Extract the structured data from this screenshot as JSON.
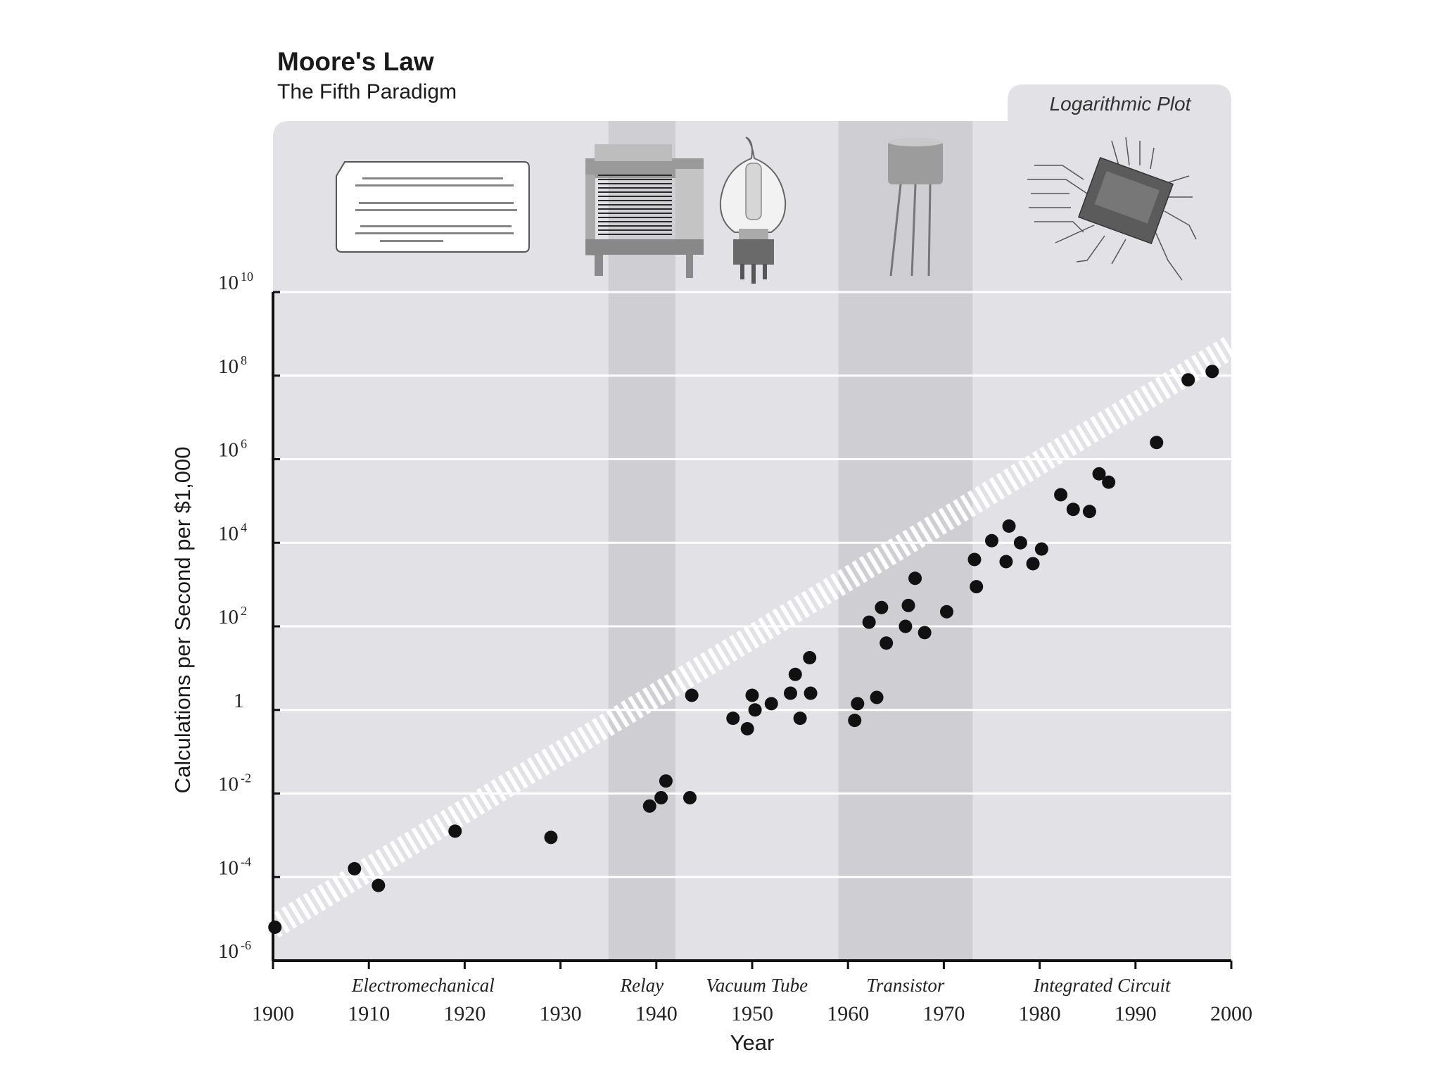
{
  "chart_data": {
    "type": "scatter",
    "title": "Moore's Law",
    "subtitle": "The Fifth Paradigm",
    "panel_label": "Logarithmic Plot",
    "xlabel": "Year",
    "ylabel": "Calculations per Second per $1,000",
    "xlim": [
      1900,
      2000
    ],
    "ylim_log10": [
      -6,
      10
    ],
    "x_ticks": [
      1900,
      1910,
      1920,
      1930,
      1940,
      1950,
      1960,
      1970,
      1980,
      1990,
      2000
    ],
    "y_ticks": [
      {
        "exp": 10,
        "base": "10",
        "sup": "10"
      },
      {
        "exp": 8,
        "base": "10",
        "sup": "8"
      },
      {
        "exp": 6,
        "base": "10",
        "sup": "6"
      },
      {
        "exp": 4,
        "base": "10",
        "sup": "4"
      },
      {
        "exp": 2,
        "base": "10",
        "sup": "2"
      },
      {
        "exp": 0,
        "base": "1",
        "sup": ""
      },
      {
        "exp": -2,
        "base": "10",
        "sup": "-2"
      },
      {
        "exp": -4,
        "base": "10",
        "sup": "-4"
      },
      {
        "exp": -6,
        "base": "10",
        "sup": "-6"
      }
    ],
    "paradigms": [
      {
        "label": "Electromechanical",
        "start": 1900,
        "end": 1935,
        "shaded": false
      },
      {
        "label": "Relay",
        "start": 1935,
        "end": 1942,
        "shaded": true
      },
      {
        "label": "Vacuum Tube",
        "start": 1942,
        "end": 1959,
        "shaded": false
      },
      {
        "label": "Transistor",
        "start": 1959,
        "end": 1973,
        "shaded": true
      },
      {
        "label": "Integrated Circuit",
        "start": 1973,
        "end": 2000,
        "shaded": false
      }
    ],
    "trend": {
      "x": [
        1900,
        2000
      ],
      "log10_y": [
        -5.2,
        8.7
      ]
    },
    "points": [
      {
        "x": 1900.2,
        "log10_y": -5.2
      },
      {
        "x": 1908.5,
        "log10_y": -3.8
      },
      {
        "x": 1911,
        "log10_y": -4.2
      },
      {
        "x": 1919,
        "log10_y": -2.9
      },
      {
        "x": 1929,
        "log10_y": -3.05
      },
      {
        "x": 1939.3,
        "log10_y": -2.3
      },
      {
        "x": 1940.5,
        "log10_y": -2.1
      },
      {
        "x": 1941,
        "log10_y": -1.7
      },
      {
        "x": 1943.5,
        "log10_y": -2.1
      },
      {
        "x": 1943.7,
        "log10_y": 0.35
      },
      {
        "x": 1948,
        "log10_y": -0.2
      },
      {
        "x": 1949.5,
        "log10_y": -0.45
      },
      {
        "x": 1950,
        "log10_y": 0.35
      },
      {
        "x": 1950.3,
        "log10_y": 0.0
      },
      {
        "x": 1952,
        "log10_y": 0.15
      },
      {
        "x": 1954,
        "log10_y": 0.4
      },
      {
        "x": 1954.5,
        "log10_y": 0.85
      },
      {
        "x": 1955,
        "log10_y": -0.2
      },
      {
        "x": 1956,
        "log10_y": 1.25
      },
      {
        "x": 1956.1,
        "log10_y": 0.4
      },
      {
        "x": 1960.7,
        "log10_y": -0.25
      },
      {
        "x": 1961,
        "log10_y": 0.15
      },
      {
        "x": 1962.2,
        "log10_y": 2.1
      },
      {
        "x": 1963,
        "log10_y": 0.3
      },
      {
        "x": 1963.5,
        "log10_y": 2.45
      },
      {
        "x": 1964,
        "log10_y": 1.6
      },
      {
        "x": 1966,
        "log10_y": 2.0
      },
      {
        "x": 1966.3,
        "log10_y": 2.5
      },
      {
        "x": 1967,
        "log10_y": 3.15
      },
      {
        "x": 1968,
        "log10_y": 1.85
      },
      {
        "x": 1970.3,
        "log10_y": 2.35
      },
      {
        "x": 1973.2,
        "log10_y": 3.6
      },
      {
        "x": 1973.4,
        "log10_y": 2.95
      },
      {
        "x": 1975,
        "log10_y": 4.05
      },
      {
        "x": 1976.5,
        "log10_y": 3.55
      },
      {
        "x": 1976.8,
        "log10_y": 4.4
      },
      {
        "x": 1978,
        "log10_y": 4.0
      },
      {
        "x": 1979.3,
        "log10_y": 3.5
      },
      {
        "x": 1980.2,
        "log10_y": 3.85
      },
      {
        "x": 1982.2,
        "log10_y": 5.15
      },
      {
        "x": 1983.5,
        "log10_y": 4.8
      },
      {
        "x": 1985.2,
        "log10_y": 4.75
      },
      {
        "x": 1986.2,
        "log10_y": 5.65
      },
      {
        "x": 1987.2,
        "log10_y": 5.45
      },
      {
        "x": 1992.2,
        "log10_y": 6.4
      },
      {
        "x": 1995.5,
        "log10_y": 7.9
      },
      {
        "x": 1998,
        "log10_y": 8.1
      }
    ]
  }
}
